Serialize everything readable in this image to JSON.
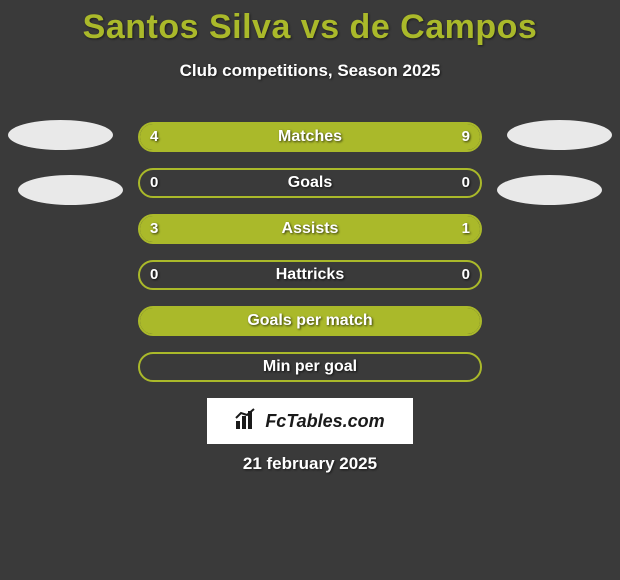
{
  "title": "Santos Silva vs de Campos",
  "subtitle": "Club competitions, Season 2025",
  "date": "21 february 2025",
  "watermark": "FcTables.com",
  "colors": {
    "accent": "#aab92a",
    "background": "#3a3a3a",
    "avatar_bg": "#e9e9e9",
    "text": "#ffffff"
  },
  "bars": [
    {
      "label": "Matches",
      "left_val": "4",
      "right_val": "9",
      "left_pct": 30.8,
      "right_pct": 69.2,
      "show_vals": true
    },
    {
      "label": "Goals",
      "left_val": "0",
      "right_val": "0",
      "left_pct": 0,
      "right_pct": 0,
      "show_vals": true
    },
    {
      "label": "Assists",
      "left_val": "3",
      "right_val": "1",
      "left_pct": 75.0,
      "right_pct": 25.0,
      "show_vals": true
    },
    {
      "label": "Hattricks",
      "left_val": "0",
      "right_val": "0",
      "left_pct": 0,
      "right_pct": 0,
      "show_vals": true
    },
    {
      "label": "Goals per match",
      "left_val": "",
      "right_val": "",
      "left_pct": 100,
      "right_pct": 0,
      "show_vals": false
    },
    {
      "label": "Min per goal",
      "left_val": "",
      "right_val": "",
      "left_pct": 0,
      "right_pct": 0,
      "show_vals": false
    }
  ]
}
